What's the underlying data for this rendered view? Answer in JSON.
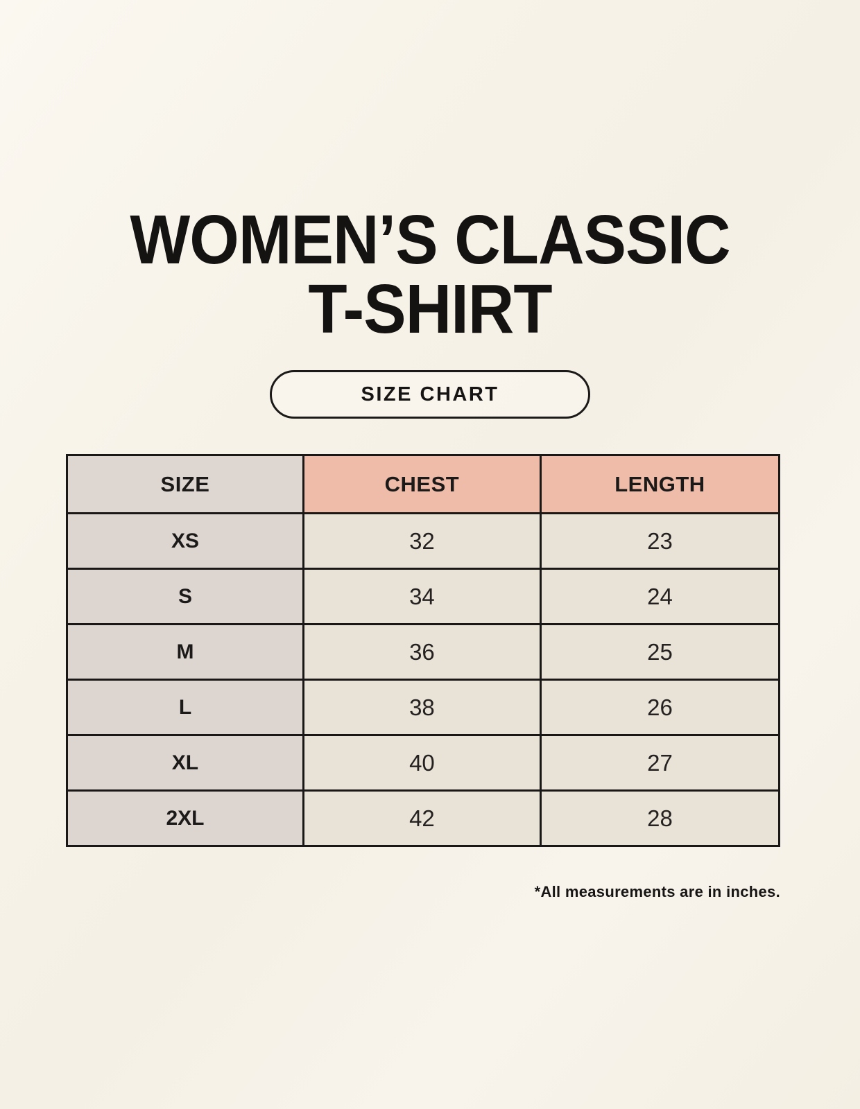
{
  "header": {
    "title_line1": "WOMEN’S CLASSIC",
    "title_line2": "T-SHIRT",
    "badge_label": "SIZE CHART"
  },
  "footnote": "*All measurements are in inches.",
  "colors": {
    "page_background": "#f7f3ea",
    "size_header_bg": "#ddd6d1",
    "measure_header_bg": "#efbcaa",
    "size_column_bg": "#dcd5d0",
    "data_cell_bg": "#e9e2d6",
    "border": "#1a1817",
    "text": "#1c1a19"
  },
  "chart_data": {
    "type": "table",
    "title": "WOMEN’S CLASSIC T-SHIRT — SIZE CHART",
    "unit": "inches",
    "columns": [
      "SIZE",
      "CHEST",
      "LENGTH"
    ],
    "rows": [
      [
        "XS",
        "32",
        "23"
      ],
      [
        "S",
        "34",
        "24"
      ],
      [
        "M",
        "36",
        "25"
      ],
      [
        "L",
        "38",
        "26"
      ],
      [
        "XL",
        "40",
        "27"
      ],
      [
        "2XL",
        "42",
        "28"
      ]
    ]
  }
}
